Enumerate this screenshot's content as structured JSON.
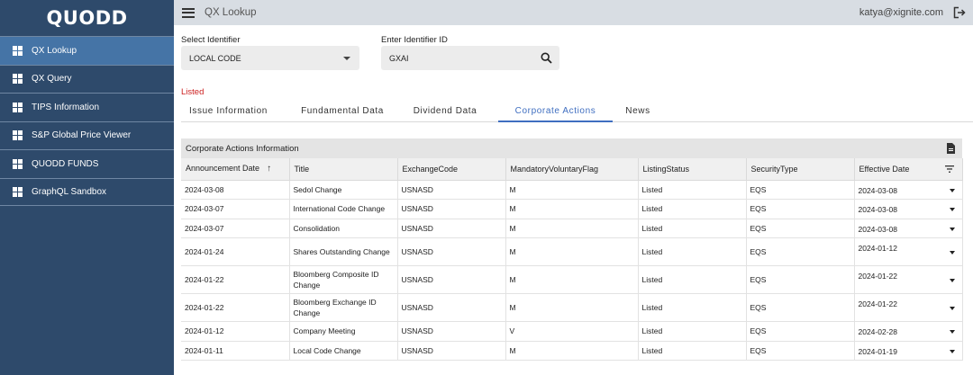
{
  "sidebar": {
    "logo": "QUODD",
    "items": [
      {
        "label": "QX Lookup",
        "active": true
      },
      {
        "label": "QX Query",
        "active": false
      },
      {
        "label": "TIPS Information",
        "active": false
      },
      {
        "label": "S&P Global Price Viewer",
        "active": false
      },
      {
        "label": "QUODD FUNDS",
        "active": false
      },
      {
        "label": "GraphQL Sandbox",
        "active": false
      }
    ]
  },
  "header": {
    "title": "QX Lookup",
    "user_email": "katya@xignite.com",
    "menu_icon": "hamburger-menu-icon",
    "logout_icon": "logout-icon"
  },
  "form": {
    "identifier_label": "Select Identifier",
    "identifier_value": "LOCAL CODE",
    "id_label": "Enter Identifier ID",
    "id_value": "GXAI"
  },
  "status": {
    "text": "Listed",
    "color": "#cc1f1f"
  },
  "tabs": [
    {
      "label": "Issue Information",
      "active": false
    },
    {
      "label": "Fundamental Data",
      "active": false
    },
    {
      "label": "Dividend Data",
      "active": false
    },
    {
      "label": "Corporate Actions",
      "active": true
    },
    {
      "label": "News",
      "active": false
    }
  ],
  "table": {
    "title": "Corporate Actions Information",
    "columns": [
      "Announcement Date",
      "Title",
      "ExchangeCode",
      "MandatoryVoluntaryFlag",
      "ListingStatus",
      "SecurityType",
      "Effective Date"
    ],
    "sort_indicator": "↑",
    "rows": [
      [
        "2024-03-08",
        "Sedol Change",
        "USNASD",
        "M",
        "Listed",
        "EQS",
        "2024-03-08"
      ],
      [
        "2024-03-07",
        "International Code Change",
        "USNASD",
        "M",
        "Listed",
        "EQS",
        "2024-03-08"
      ],
      [
        "2024-03-07",
        "Consolidation",
        "USNASD",
        "M",
        "Listed",
        "EQS",
        "2024-03-08"
      ],
      [
        "2024-01-24",
        "Shares Outstanding Change",
        "USNASD",
        "M",
        "Listed",
        "EQS",
        "2024-01-12"
      ],
      [
        "2024-01-22",
        "Bloomberg Composite ID Change",
        "USNASD",
        "M",
        "Listed",
        "EQS",
        "2024-01-22"
      ],
      [
        "2024-01-22",
        "Bloomberg Exchange ID Change",
        "USNASD",
        "M",
        "Listed",
        "EQS",
        "2024-01-22"
      ],
      [
        "2024-01-12",
        "Company Meeting",
        "USNASD",
        "V",
        "Listed",
        "EQS",
        "2024-02-28"
      ],
      [
        "2024-01-11",
        "Local Code Change",
        "USNASD",
        "M",
        "Listed",
        "EQS",
        "2024-01-19"
      ]
    ]
  },
  "colors": {
    "sidebar_bg": "#2e4a6b",
    "sidebar_active": "#4574a6",
    "accent": "#3f6ec0"
  }
}
